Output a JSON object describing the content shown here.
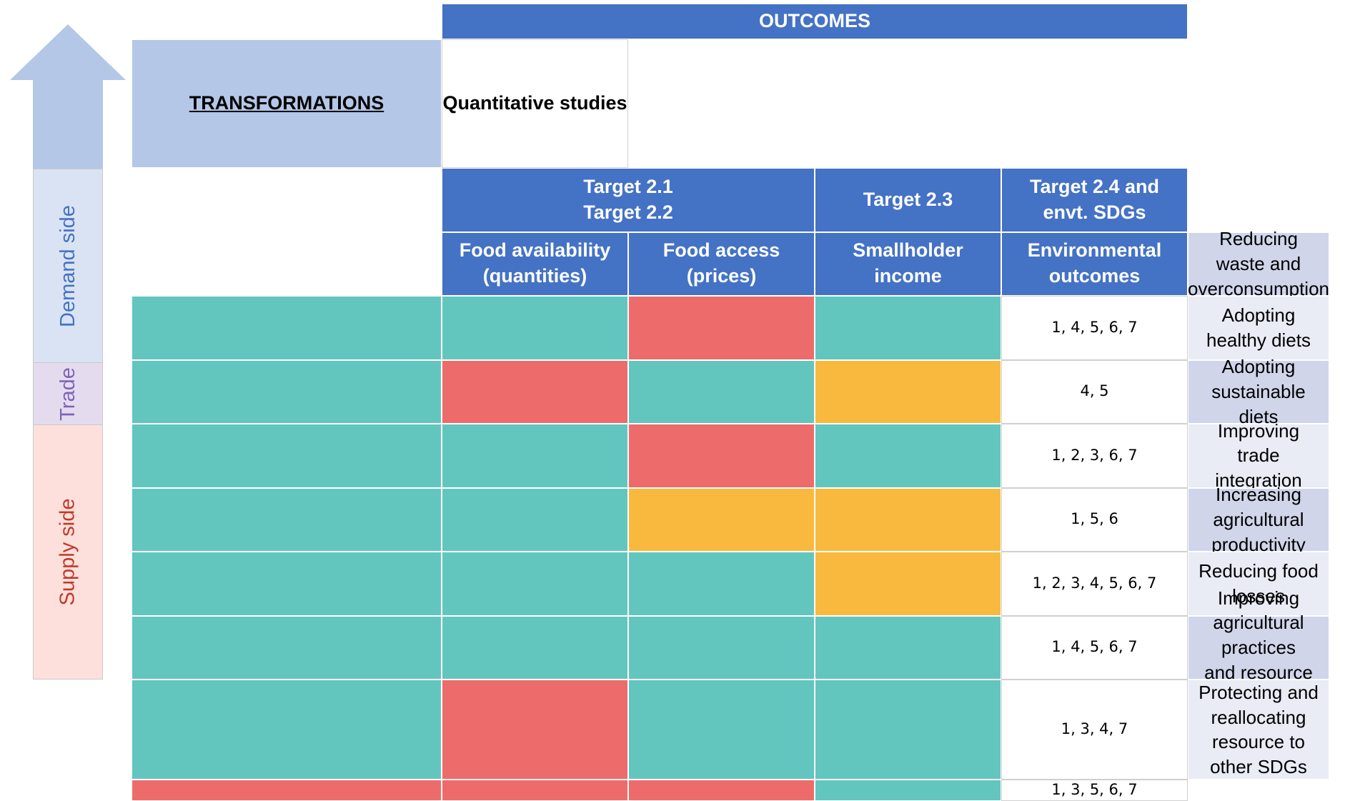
{
  "colors": {
    "positive": "#62c6bf",
    "negative": "#ee6b6b",
    "mixed": "#f9b93e",
    "header": "#4472c4",
    "transformations_header": "#b4c7e7"
  },
  "side_labels": {
    "demand": "Demand side",
    "trade": "Trade",
    "supply": "Supply side"
  },
  "header": {
    "outcomes": "OUTCOMES",
    "transformations": "TRANSFORMATIONS",
    "quantitative_studies": "Quantitative studies",
    "targets": [
      {
        "line1": "Target 2.1",
        "line2": "Target 2.2"
      },
      {
        "line1": "Target 2.3",
        "line2": ""
      },
      {
        "line1": "Target 2.4 and",
        "line2": "envt. SDGs"
      }
    ],
    "columns": [
      {
        "line1": "Food availability",
        "line2": "(quantities)"
      },
      {
        "line1": "Food access",
        "line2": "(prices)"
      },
      {
        "line1": "Smallholder",
        "line2": "income"
      },
      {
        "line1": "Environmental",
        "line2": "outcomes"
      }
    ]
  },
  "rows": [
    {
      "line1": "Reducing waste and",
      "line2": "overconsumption",
      "studies": "1, 4, 5, 6, 7",
      "cells": [
        "positive",
        "positive",
        "negative",
        "positive"
      ]
    },
    {
      "line1": "Adopting healthy diets",
      "line2": "",
      "studies": "4, 5",
      "cells": [
        "positive",
        "negative",
        "positive",
        "mixed"
      ]
    },
    {
      "line1": "Adopting sustainable diets",
      "line2": "",
      "studies": "1, 2, 3, 6, 7",
      "cells": [
        "positive",
        "positive",
        "negative",
        "positive"
      ]
    },
    {
      "line1": "Improving trade integration",
      "line2": "",
      "studies": "1, 5, 6",
      "cells": [
        "positive",
        "positive",
        "mixed",
        "mixed"
      ]
    },
    {
      "line1": "Increasing agricultural",
      "line2": "productivity",
      "studies": "1, 2, 3, 4, 5, 6, 7",
      "cells": [
        "positive",
        "positive",
        "positive",
        "mixed"
      ]
    },
    {
      "line1": "Reducing food losses",
      "line2": "",
      "studies": "1, 4, 5, 6, 7",
      "cells": [
        "positive",
        "positive",
        "positive",
        "positive"
      ]
    },
    {
      "line1": "Improving agricultural practices",
      "line2": "and resource management",
      "studies": "1, 3, 4, 7",
      "cells": [
        "positive",
        "negative",
        "positive",
        "positive"
      ]
    },
    {
      "line1": "Protecting and reallocating",
      "line2": "resource to other SDGs",
      "studies": "1, 3, 5, 6, 7",
      "cells": [
        "negative",
        "negative",
        "negative",
        "positive"
      ]
    }
  ]
}
